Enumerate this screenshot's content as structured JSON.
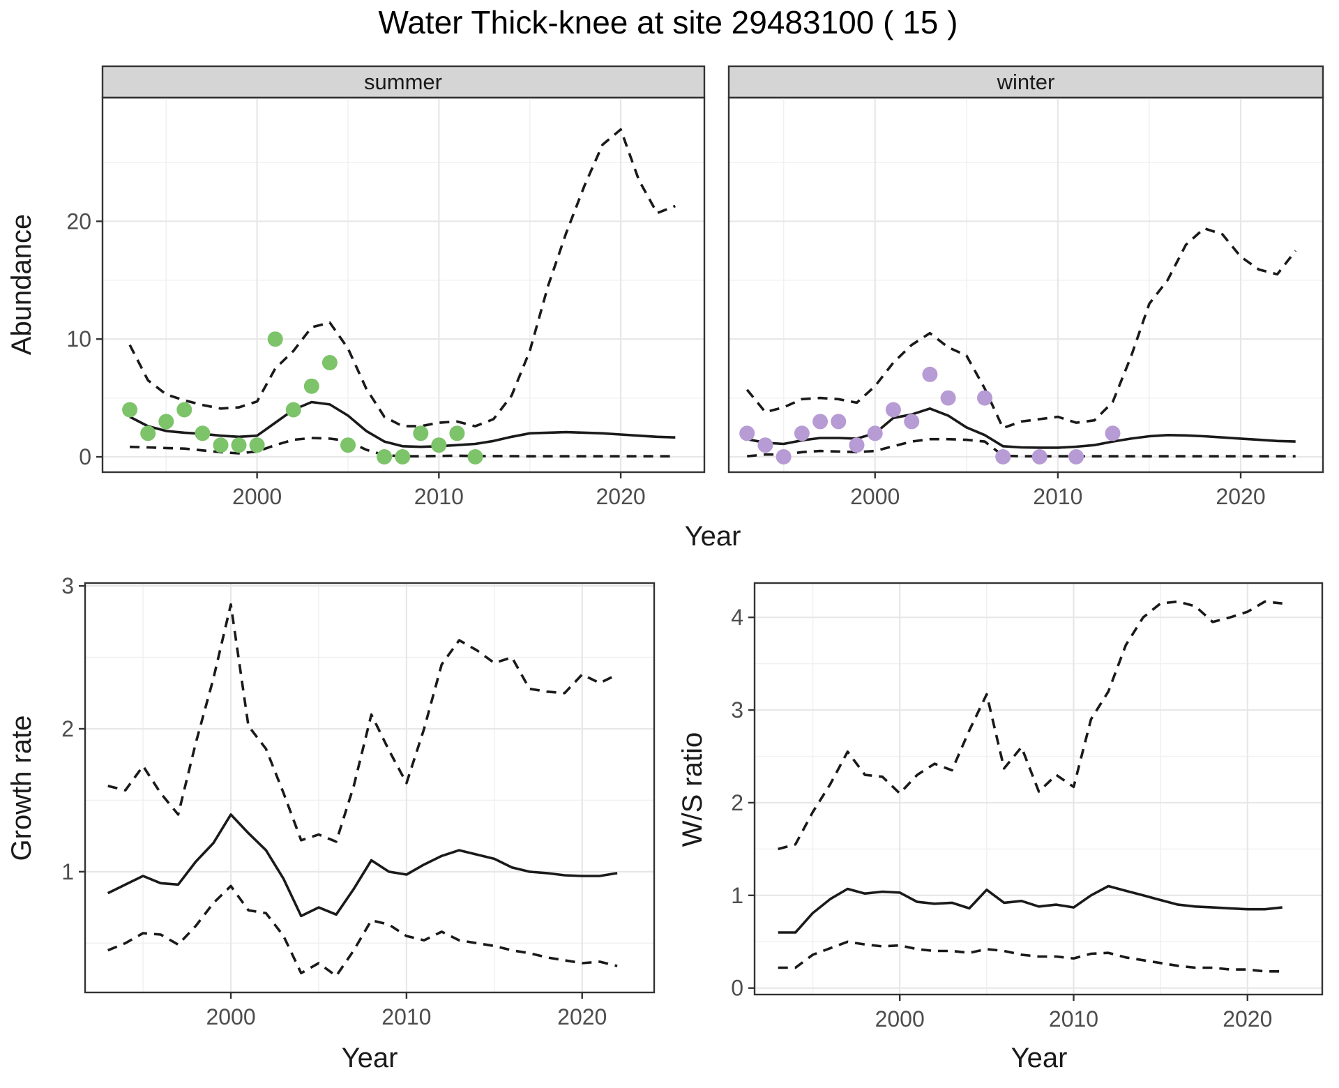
{
  "title": "Water Thick-knee at site 29483100 ( 15 )",
  "axis_labels": {
    "x": "Year",
    "y_abundance": "Abundance",
    "y_growth": "Growth rate",
    "y_ws": "W/S ratio"
  },
  "colors": {
    "summer_point": "#7cc36a",
    "winter_point": "#b79bd4",
    "line": "#1a1a1a",
    "grid_major": "#e7e7e7",
    "grid_minor": "#f1f1f1",
    "panel_border": "#333333",
    "strip_bg": "#d5d5d5",
    "tick_text": "#4d4d4d"
  },
  "chart_data": [
    {
      "id": "abundance-summer",
      "type": "line",
      "strip": "summer",
      "xlabel": "Year",
      "ylabel": "Abundance",
      "x_range": [
        1991.5,
        2024.6
      ],
      "y_range": [
        -1.3,
        30.5
      ],
      "x_ticks": [
        2000,
        2010,
        2020
      ],
      "x_minor": [
        1995,
        2005,
        2015
      ],
      "y_ticks": [
        0,
        10,
        20
      ],
      "y_minor": [
        5,
        15,
        25
      ],
      "show_y_tick_labels": true,
      "legend": "none",
      "years": [
        1993,
        1994,
        1995,
        1996,
        1997,
        1998,
        1999,
        2000,
        2001,
        2002,
        2003,
        2004,
        2005,
        2006,
        2007,
        2008,
        2009,
        2010,
        2011,
        2012,
        2013,
        2014,
        2015,
        2016,
        2017,
        2018,
        2019,
        2020,
        2021,
        2022,
        2023
      ],
      "series": [
        {
          "name": "mean",
          "style": "solid",
          "values": [
            3.4,
            2.6,
            2.2,
            2.05,
            1.95,
            1.8,
            1.7,
            1.8,
            2.9,
            4.0,
            4.65,
            4.45,
            3.5,
            2.2,
            1.3,
            0.9,
            0.85,
            0.9,
            1.0,
            1.1,
            1.35,
            1.7,
            2.0,
            2.05,
            2.1,
            2.05,
            2.0,
            1.9,
            1.8,
            1.7,
            1.65
          ]
        },
        {
          "name": "upper_ci",
          "style": "dashed",
          "values": [
            9.5,
            6.5,
            5.3,
            4.8,
            4.4,
            4.1,
            4.2,
            4.7,
            7.5,
            9.0,
            11.0,
            11.4,
            9.2,
            5.8,
            3.4,
            2.6,
            2.6,
            2.9,
            3.0,
            2.6,
            3.2,
            5.2,
            9.0,
            14.5,
            19.0,
            23.0,
            26.5,
            27.8,
            23.5,
            20.7,
            21.3
          ]
        },
        {
          "name": "lower_ci",
          "style": "dashed",
          "values": [
            0.85,
            0.8,
            0.75,
            0.7,
            0.55,
            0.4,
            0.3,
            0.45,
            1.0,
            1.45,
            1.6,
            1.55,
            1.35,
            0.6,
            0.15,
            0.05,
            0.05,
            0.08,
            0.1,
            0.07,
            0.07,
            0.06,
            0.05,
            0.05,
            0.05,
            0.05,
            0.05,
            0.05,
            0.05,
            0.05,
            0.05
          ]
        }
      ],
      "points": {
        "name": "observed-counts",
        "color_key": "summer_point",
        "years": [
          1993,
          1994,
          1995,
          1996,
          1997,
          1998,
          1999,
          2000,
          2001,
          2002,
          2003,
          2004,
          2005,
          2007,
          2008,
          2009,
          2010,
          2011,
          2012
        ],
        "values": [
          4,
          2,
          3,
          4,
          2,
          1,
          1,
          1,
          10,
          4,
          6,
          8,
          1,
          0,
          0,
          2,
          1,
          2,
          0
        ]
      }
    },
    {
      "id": "abundance-winter",
      "type": "line",
      "strip": "winter",
      "xlabel": "Year",
      "ylabel": "Abundance",
      "x_range": [
        1992.0,
        2024.5
      ],
      "y_range": [
        -1.3,
        30.5
      ],
      "x_ticks": [
        2000,
        2010,
        2020
      ],
      "x_minor": [
        1995,
        2005,
        2015
      ],
      "y_ticks": [
        0,
        10,
        20
      ],
      "y_minor": [
        5,
        15,
        25
      ],
      "show_y_tick_labels": false,
      "legend": "none",
      "years": [
        1993,
        1994,
        1995,
        1996,
        1997,
        1998,
        1999,
        2000,
        2001,
        2002,
        2003,
        2004,
        2005,
        2006,
        2007,
        2008,
        2009,
        2010,
        2011,
        2012,
        2013,
        2014,
        2015,
        2016,
        2017,
        2018,
        2019,
        2020,
        2021,
        2022,
        2023
      ],
      "series": [
        {
          "name": "mean",
          "style": "solid",
          "values": [
            1.5,
            1.2,
            1.1,
            1.4,
            1.6,
            1.6,
            1.55,
            2.0,
            3.3,
            3.6,
            4.1,
            3.5,
            2.5,
            1.85,
            0.9,
            0.8,
            0.78,
            0.78,
            0.86,
            1.0,
            1.3,
            1.55,
            1.75,
            1.85,
            1.82,
            1.75,
            1.65,
            1.55,
            1.45,
            1.35,
            1.3
          ]
        },
        {
          "name": "upper_ci",
          "style": "dashed",
          "values": [
            5.7,
            3.8,
            4.2,
            4.9,
            5.0,
            4.9,
            4.6,
            6.0,
            8.0,
            9.5,
            10.5,
            9.3,
            8.6,
            5.8,
            2.45,
            3.0,
            3.2,
            3.4,
            2.9,
            3.1,
            4.65,
            8.5,
            13.0,
            15.0,
            18.0,
            19.4,
            18.9,
            17.0,
            15.9,
            15.5,
            17.5
          ]
        },
        {
          "name": "lower_ci",
          "style": "dashed",
          "values": [
            0.05,
            0.2,
            0.2,
            0.4,
            0.5,
            0.45,
            0.4,
            0.5,
            0.9,
            1.3,
            1.5,
            1.5,
            1.45,
            1.3,
            0.1,
            0.05,
            0.05,
            0.05,
            0.05,
            0.05,
            0.05,
            0.05,
            0.05,
            0.05,
            0.05,
            0.05,
            0.05,
            0.05,
            0.05,
            0.05,
            0.05
          ]
        }
      ],
      "points": {
        "name": "observed-counts",
        "color_key": "winter_point",
        "years": [
          1993,
          1994,
          1995,
          1996,
          1997,
          1998,
          1999,
          2000,
          2001,
          2002,
          2003,
          2004,
          2006,
          2007,
          2009,
          2011,
          2013
        ],
        "values": [
          2,
          1,
          0,
          2,
          3,
          3,
          1,
          2,
          4,
          3,
          7,
          5,
          5,
          0,
          0,
          0,
          2
        ]
      }
    },
    {
      "id": "growth-rate",
      "type": "line",
      "strip": null,
      "xlabel": "Year",
      "ylabel": "Growth rate",
      "x_range": [
        1991.7,
        2024.1
      ],
      "y_range": [
        0.155,
        3.02
      ],
      "x_ticks": [
        2000,
        2010,
        2020
      ],
      "x_minor": [
        1995,
        2005,
        2015
      ],
      "y_ticks": [
        1,
        2,
        3
      ],
      "y_minor": [
        0.5,
        1.5,
        2.5
      ],
      "show_y_tick_labels": true,
      "legend": "none",
      "years": [
        1993,
        1994,
        1995,
        1996,
        1997,
        1998,
        1999,
        2000,
        2001,
        2002,
        2003,
        2004,
        2005,
        2006,
        2007,
        2008,
        2009,
        2010,
        2011,
        2012,
        2013,
        2014,
        2015,
        2016,
        2017,
        2018,
        2019,
        2020,
        2021,
        2022
      ],
      "series": [
        {
          "name": "mean",
          "style": "solid",
          "values": [
            0.85,
            0.91,
            0.97,
            0.92,
            0.91,
            1.07,
            1.2,
            1.4,
            1.27,
            1.15,
            0.95,
            0.69,
            0.75,
            0.7,
            0.88,
            1.08,
            1.0,
            0.98,
            1.05,
            1.11,
            1.15,
            1.12,
            1.09,
            1.03,
            1.0,
            0.99,
            0.975,
            0.97,
            0.97,
            0.99
          ]
        },
        {
          "name": "upper_ci",
          "style": "dashed",
          "values": [
            1.6,
            1.57,
            1.74,
            1.55,
            1.4,
            1.9,
            2.35,
            2.87,
            2.02,
            1.86,
            1.55,
            1.22,
            1.26,
            1.21,
            1.6,
            2.1,
            1.85,
            1.62,
            2.0,
            2.45,
            2.62,
            2.55,
            2.46,
            2.5,
            2.28,
            2.26,
            2.25,
            2.38,
            2.32,
            2.38
          ]
        },
        {
          "name": "lower_ci",
          "style": "dashed",
          "values": [
            0.45,
            0.5,
            0.57,
            0.56,
            0.49,
            0.62,
            0.78,
            0.9,
            0.73,
            0.71,
            0.55,
            0.29,
            0.36,
            0.27,
            0.45,
            0.66,
            0.63,
            0.55,
            0.52,
            0.58,
            0.52,
            0.5,
            0.48,
            0.45,
            0.43,
            0.4,
            0.38,
            0.36,
            0.37,
            0.34
          ]
        }
      ],
      "points": null
    },
    {
      "id": "ws-ratio",
      "type": "line",
      "strip": null,
      "xlabel": "Year",
      "ylabel": "W/S ratio",
      "x_range": [
        1991.65,
        2024.3
      ],
      "y_range": [
        -0.07,
        4.37
      ],
      "x_ticks": [
        2000,
        2010,
        2020
      ],
      "x_minor": [
        1995,
        2005,
        2015
      ],
      "y_ticks": [
        0,
        1,
        2,
        3,
        4
      ],
      "y_minor": [
        0.5,
        1.5,
        2.5,
        3.5
      ],
      "show_y_tick_labels": true,
      "legend": "none",
      "years": [
        1993,
        1994,
        1995,
        1996,
        1997,
        1998,
        1999,
        2000,
        2001,
        2002,
        2003,
        2004,
        2005,
        2006,
        2007,
        2008,
        2009,
        2010,
        2011,
        2012,
        2013,
        2014,
        2015,
        2016,
        2017,
        2018,
        2019,
        2020,
        2021,
        2022
      ],
      "series": [
        {
          "name": "mean",
          "style": "solid",
          "values": [
            0.6,
            0.6,
            0.81,
            0.96,
            1.07,
            1.02,
            1.04,
            1.03,
            0.93,
            0.91,
            0.92,
            0.86,
            1.06,
            0.92,
            0.94,
            0.88,
            0.9,
            0.87,
            1.0,
            1.1,
            1.05,
            1.0,
            0.95,
            0.9,
            0.88,
            0.87,
            0.86,
            0.85,
            0.85,
            0.87
          ]
        },
        {
          "name": "upper_ci",
          "style": "dashed",
          "values": [
            1.5,
            1.55,
            1.9,
            2.2,
            2.55,
            2.3,
            2.28,
            2.1,
            2.3,
            2.42,
            2.35,
            2.78,
            3.17,
            2.37,
            2.6,
            2.12,
            2.3,
            2.17,
            2.9,
            3.2,
            3.7,
            4.0,
            4.15,
            4.17,
            4.12,
            3.95,
            4.0,
            4.06,
            4.17,
            4.15
          ]
        },
        {
          "name": "lower_ci",
          "style": "dashed",
          "values": [
            0.22,
            0.22,
            0.36,
            0.43,
            0.5,
            0.47,
            0.45,
            0.46,
            0.42,
            0.4,
            0.4,
            0.38,
            0.42,
            0.4,
            0.36,
            0.34,
            0.34,
            0.32,
            0.37,
            0.38,
            0.33,
            0.3,
            0.27,
            0.24,
            0.22,
            0.22,
            0.2,
            0.2,
            0.18,
            0.18
          ]
        }
      ],
      "points": null
    }
  ]
}
